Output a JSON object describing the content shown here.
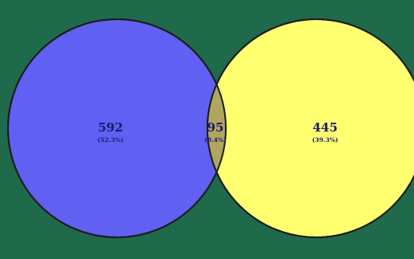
{
  "venn": {
    "sets": [
      {
        "key": "left",
        "color": "#6060f2"
      },
      {
        "key": "right",
        "color": "#ffff70"
      }
    ],
    "intersection_color": "#b0a660",
    "regions": {
      "left_only": {
        "count": "592",
        "percent": "(52.3%)"
      },
      "overlap": {
        "count": "95",
        "percent": "(8.4%)"
      },
      "right_only": {
        "count": "445",
        "percent": "(39.3%)"
      }
    }
  }
}
